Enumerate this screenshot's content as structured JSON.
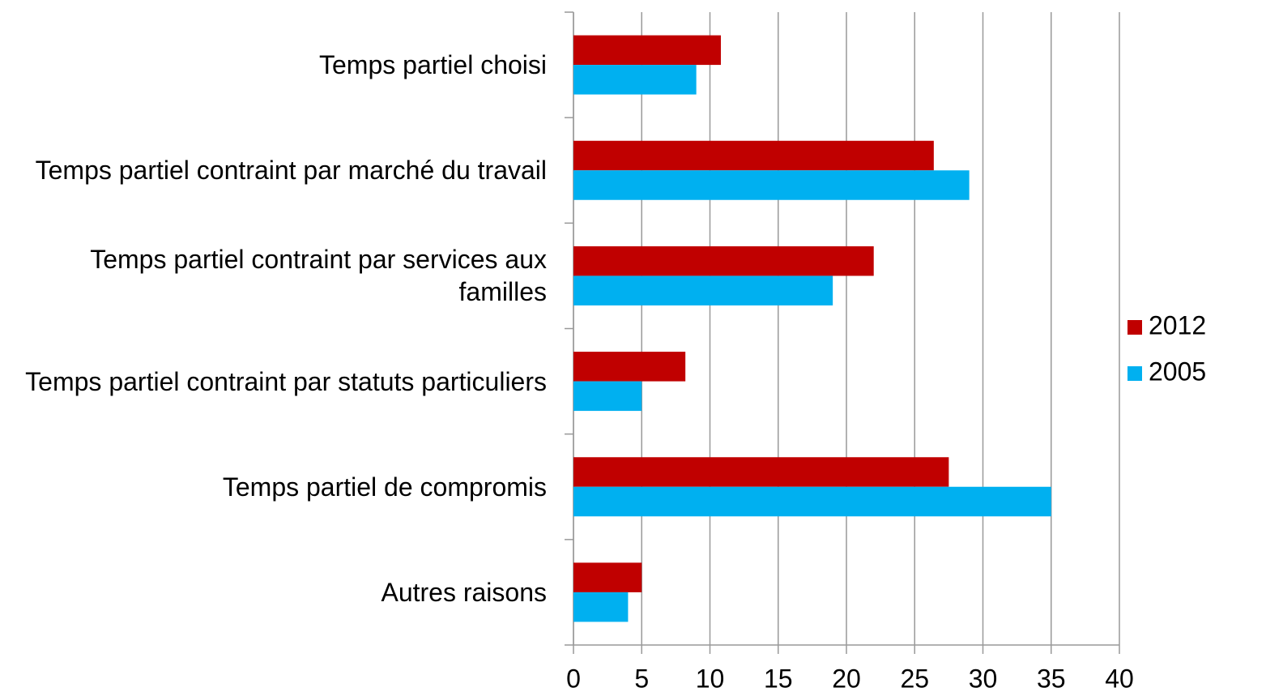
{
  "chart_data": {
    "type": "bar",
    "orientation": "horizontal",
    "categories": [
      "Temps partiel choisi",
      "Temps partiel contraint par marché du travail",
      "Temps partiel contraint par services aux familles",
      "Temps partiel contraint par statuts particuliers",
      "Temps partiel de compromis",
      "Autres raisons"
    ],
    "series": [
      {
        "name": "2012",
        "color": "#c00000",
        "values": [
          10.8,
          26.4,
          22.0,
          8.2,
          27.5,
          5.0
        ]
      },
      {
        "name": "2005",
        "color": "#00b0f0",
        "values": [
          9.0,
          29.0,
          19.0,
          5.0,
          35.0,
          4.0
        ]
      }
    ],
    "xlim": [
      0,
      40
    ],
    "xticks": [
      0,
      5,
      10,
      15,
      20,
      25,
      30,
      35,
      40
    ],
    "grid": true,
    "legend": "right"
  }
}
